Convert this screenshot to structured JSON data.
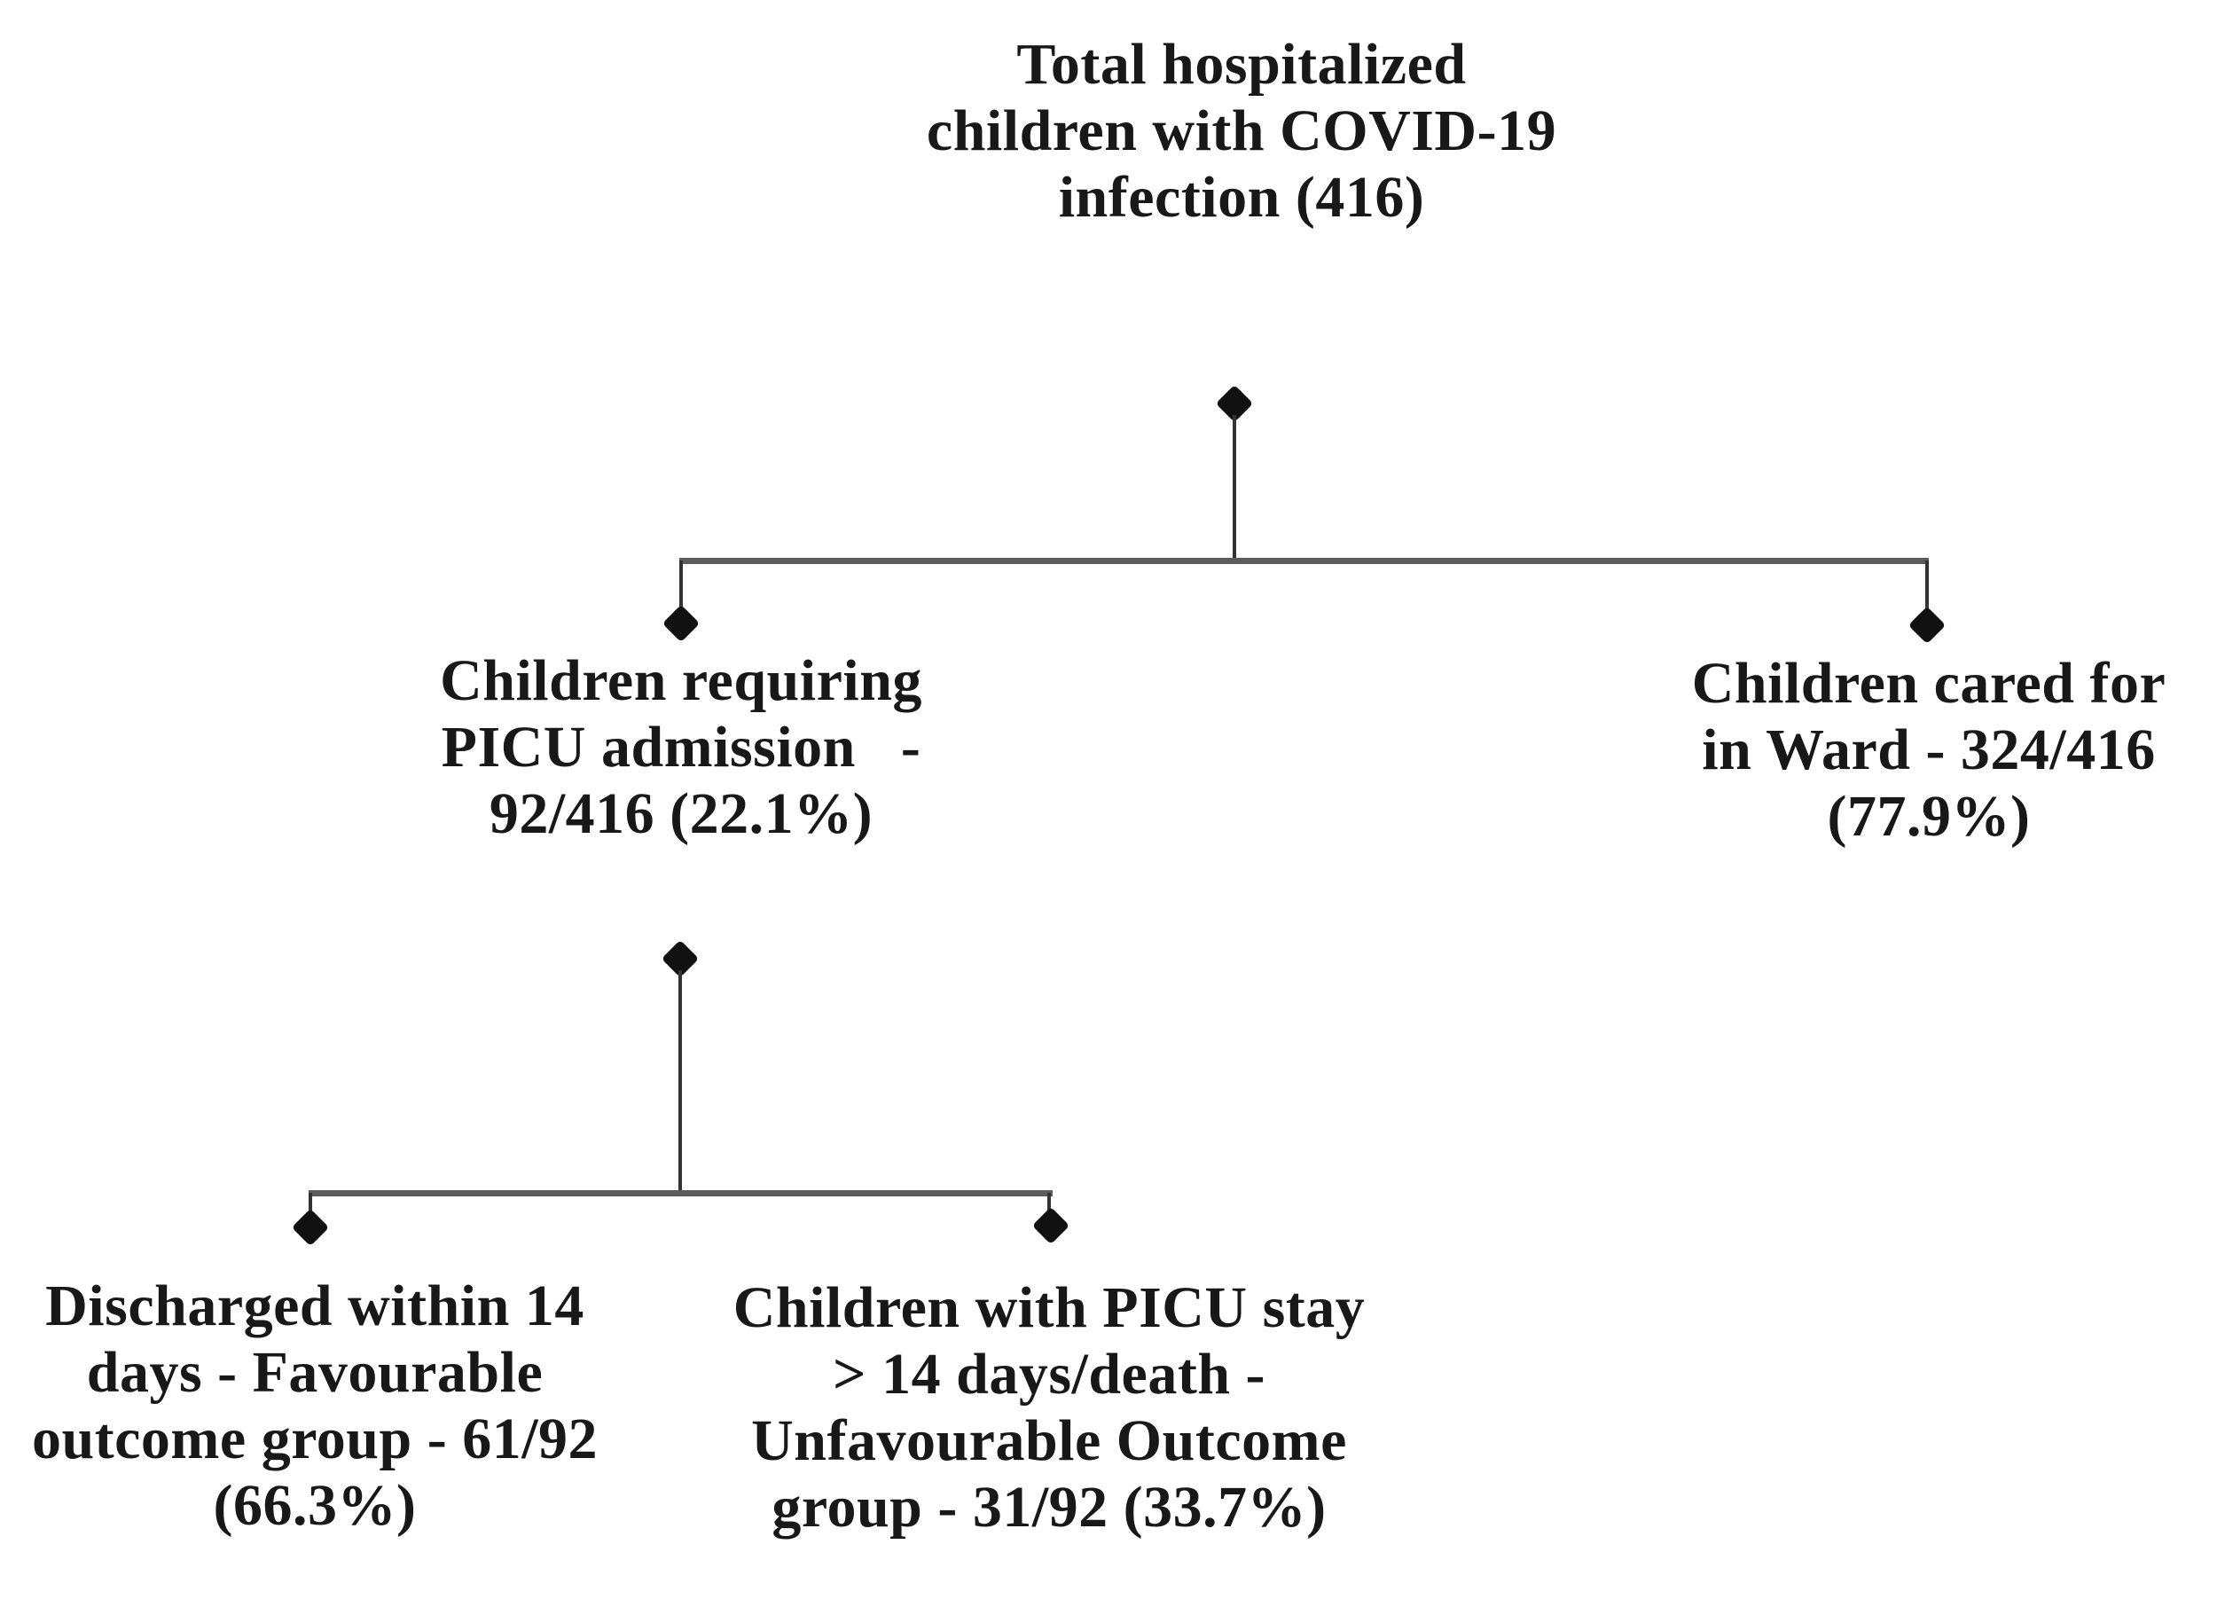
{
  "diagram": {
    "type": "flowchart",
    "nodes": {
      "root": {
        "lines": [
          "Total hospitalized",
          "children with COVID-19",
          "infection (416)"
        ],
        "value": 416
      },
      "picu": {
        "lines": [
          "Children requiring",
          "PICU admission   -",
          "92/416 (22.1%)"
        ],
        "value": 92,
        "of": 416,
        "percent": "22.1%"
      },
      "ward": {
        "lines": [
          "Children cared for",
          "in Ward - 324/416",
          "(77.9%)"
        ],
        "value": 324,
        "of": 416,
        "percent": "77.9%"
      },
      "favourable": {
        "lines": [
          "Discharged within 14",
          "days - Favourable",
          "outcome group - 61/92",
          "(66.3%)"
        ],
        "value": 61,
        "of": 92,
        "percent": "66.3%"
      },
      "unfavourable": {
        "lines": [
          "Children with PICU stay",
          "> 14 days/death -",
          "Unfavourable Outcome",
          "group - 31/92 (33.7%)"
        ],
        "value": 31,
        "of": 92,
        "percent": "33.7%"
      }
    },
    "edges": [
      {
        "from": "root",
        "to": "picu"
      },
      {
        "from": "root",
        "to": "ward"
      },
      {
        "from": "picu",
        "to": "favourable"
      },
      {
        "from": "picu",
        "to": "unfavourable"
      }
    ],
    "colors": {
      "background": "#ffffff",
      "text": "#181818",
      "line": "#333333",
      "bar": "#5c5c5c",
      "diamond": "#111111"
    }
  }
}
